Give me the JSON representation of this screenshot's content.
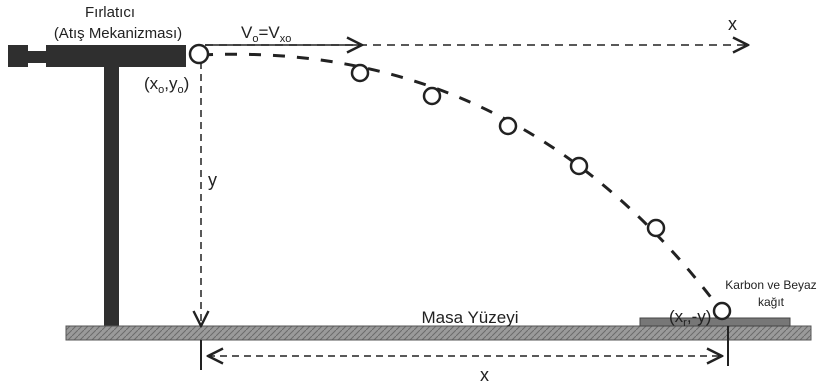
{
  "diagram": {
    "launcher_label": "Fırlatıcı",
    "mechanism_label": "(Atış Mekanizması)",
    "velocity_label": "V",
    "velocity_sub": "o",
    "velocity_eq": "=V",
    "velocity_sub2": "xo",
    "x_axis_label": "x",
    "origin_label": "(x",
    "origin_sub": "o",
    "origin_mid": ",y",
    "origin_sub2": "o",
    "origin_close": ")",
    "y_axis_label": "y",
    "end_point_label": "(x",
    "end_point_sub": "r",
    "end_point_rest": ",-y)",
    "paper_label_line1": "Karbon ve Beyaz",
    "paper_label_line2": "kağıt",
    "table_label": "Masa Yüzeyi",
    "range_label": "x"
  },
  "colors": {
    "ink": "#222222",
    "launcher_fill": "#2f2f2f",
    "table_fill": "#8a8a8a"
  }
}
